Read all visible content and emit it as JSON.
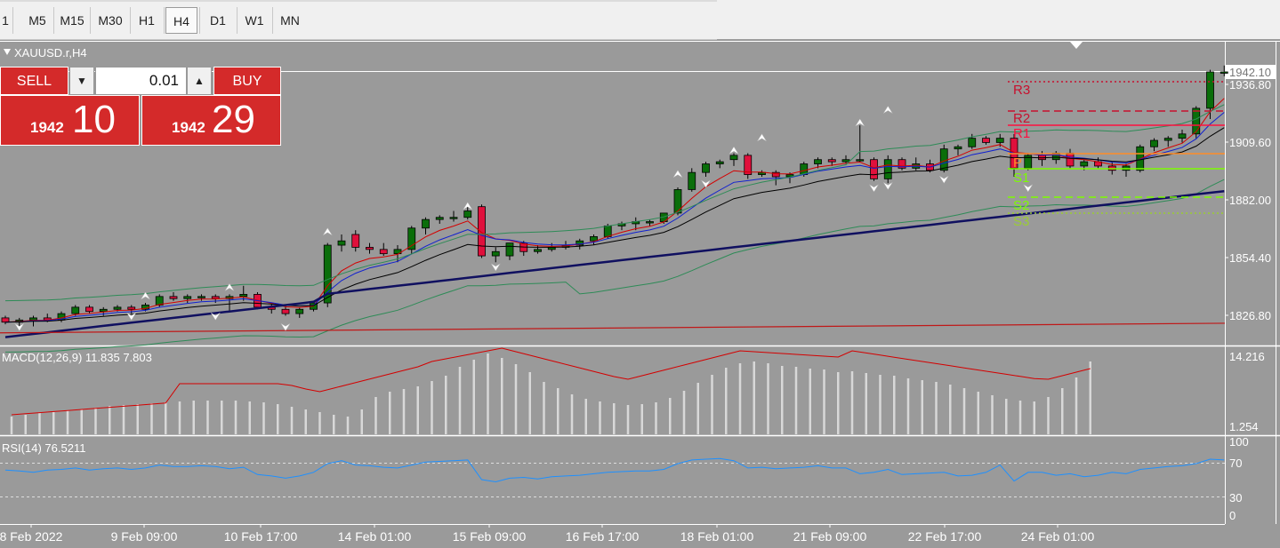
{
  "toolbar": {
    "timeframes": [
      "1",
      "M5",
      "M15",
      "M30",
      "H1",
      "H4",
      "D1",
      "W1",
      "MN"
    ],
    "active": "H4"
  },
  "chart": {
    "symbol_label": "XAUUSD.r,H4",
    "current_price_label": "1942.10",
    "price_ticks": [
      "1936.80",
      "1909.60",
      "1882.00",
      "1854.40",
      "1826.80"
    ],
    "time_labels": [
      "8 Feb 2022",
      "9 Feb 09:00",
      "10 Feb 17:00",
      "14 Feb 01:00",
      "15 Feb 09:00",
      "16 Feb 17:00",
      "18 Feb 01:00",
      "21 Feb 09:00",
      "22 Feb 17:00",
      "24 Feb 01:00"
    ],
    "pivot_labels": [
      "R3",
      "R2",
      "R1",
      "P",
      "S1",
      "S2",
      "S3"
    ],
    "colors": {
      "background": "#9a9a9a",
      "bull": "#0a6e0a",
      "bear": "#e0103c",
      "grid_line": "#ffffff",
      "axis_text": "#ffffff"
    }
  },
  "trade_panel": {
    "sell_label": "SELL",
    "buy_label": "BUY",
    "lot_value": "0.01",
    "sell_price_small": "1942",
    "sell_price_big": "10",
    "buy_price_small": "1942",
    "buy_price_big": "29"
  },
  "macd": {
    "label": "MACD(12,26,9) 11.835 7.803",
    "ticks": [
      "14.216",
      "1.254"
    ]
  },
  "rsi": {
    "label": "RSI(14) 76.5211",
    "ticks": [
      "100",
      "70",
      "30",
      "0"
    ]
  }
}
